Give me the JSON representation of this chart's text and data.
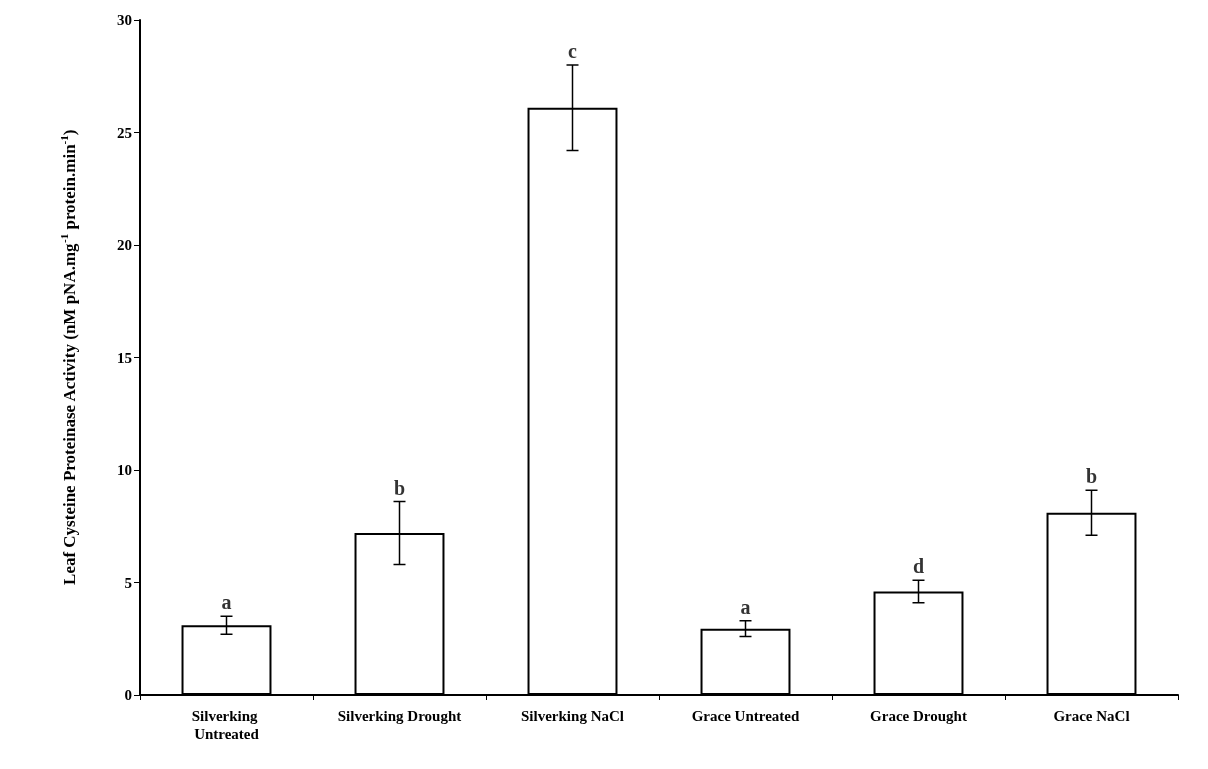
{
  "chart_data": {
    "type": "bar",
    "ylabel": "Leaf Cysteine Proteinase Activity (nM pNA.mg$^{-1}$ protein.min$^{-1}$)",
    "categories": [
      "Silverking Untreated",
      "Silverking Drought",
      "Silverking NaCl",
      "Grace Untreated",
      "Grace Drought",
      "Grace NaCl"
    ],
    "values": [
      3.1,
      7.2,
      26.1,
      2.95,
      4.6,
      8.1
    ],
    "errors": [
      0.4,
      1.4,
      1.9,
      0.35,
      0.5,
      1.0
    ],
    "color": "#ffffff",
    "ylim": [
      0,
      30
    ],
    "yticks": [
      0,
      5,
      10,
      15,
      20,
      25,
      30
    ],
    "grid": false,
    "annotations": [
      {
        "text": "a",
        "x": "Silverking Untreated",
        "y": 3.5
      },
      {
        "text": "b",
        "x": "Silverking Drought",
        "y": 8.6
      },
      {
        "text": "c",
        "x": "Silverking NaCl",
        "y": 28
      },
      {
        "text": "a",
        "x": "Grace Untreated",
        "y": 3.3
      },
      {
        "text": "d",
        "x": "Grace Drought",
        "y": 5.1
      },
      {
        "text": "b",
        "x": "Grace NaCl",
        "y": 9.1
      }
    ]
  }
}
